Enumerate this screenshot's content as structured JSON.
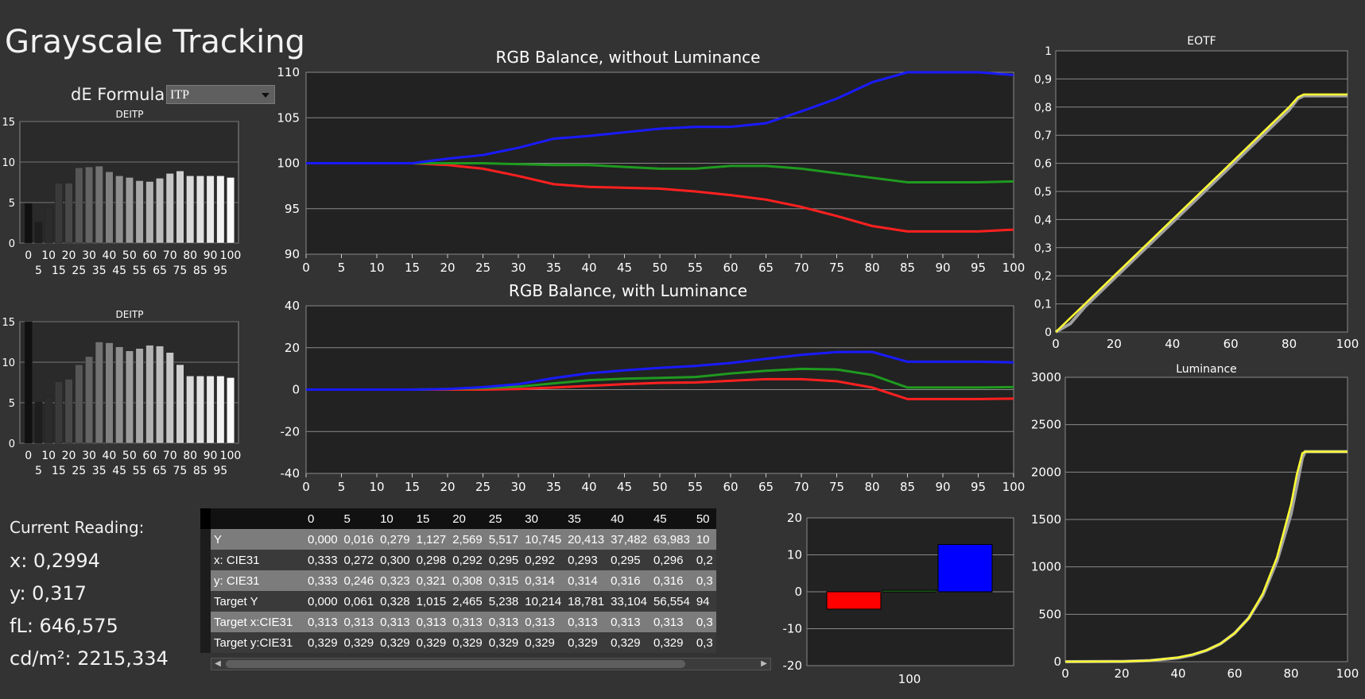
{
  "page": {
    "title": "Grayscale Tracking",
    "de_formula_label": "dE Formula:",
    "de_formula_value": "ITP"
  },
  "reading": {
    "heading": "Current Reading:",
    "x": "x: 0,2994",
    "y": "y: 0,317",
    "fl": "fL: 646,575",
    "cdm2": "cd/m²: 2215,334"
  },
  "table": {
    "columns": [
      "0",
      "5",
      "10",
      "15",
      "20",
      "25",
      "30",
      "35",
      "40",
      "45",
      "50"
    ],
    "rows": [
      {
        "label": "Y",
        "values": [
          "0,000",
          "0,016",
          "0,279",
          "1,127",
          "2,569",
          "5,517",
          "10,745",
          "20,413",
          "37,482",
          "63,983",
          "10"
        ]
      },
      {
        "label": "x: CIE31",
        "values": [
          "0,333",
          "0,272",
          "0,300",
          "0,298",
          "0,292",
          "0,295",
          "0,292",
          "0,293",
          "0,295",
          "0,296",
          "0,2"
        ]
      },
      {
        "label": "y: CIE31",
        "values": [
          "0,333",
          "0,246",
          "0,323",
          "0,321",
          "0,308",
          "0,315",
          "0,314",
          "0,314",
          "0,316",
          "0,316",
          "0,3"
        ]
      },
      {
        "label": "Target Y",
        "values": [
          "0,000",
          "0,061",
          "0,328",
          "1,015",
          "2,465",
          "5,238",
          "10,214",
          "18,781",
          "33,104",
          "56,554",
          "94"
        ]
      },
      {
        "label": "Target x:CIE31",
        "values": [
          "0,313",
          "0,313",
          "0,313",
          "0,313",
          "0,313",
          "0,313",
          "0,313",
          "0,313",
          "0,313",
          "0,313",
          "0,3"
        ]
      },
      {
        "label": "Target y:CIE31",
        "values": [
          "0,329",
          "0,329",
          "0,329",
          "0,329",
          "0,329",
          "0,329",
          "0,329",
          "0,329",
          "0,329",
          "0,329",
          "0,3"
        ]
      }
    ]
  },
  "chart_data": [
    {
      "id": "deitp1",
      "type": "bar",
      "title": "DEITP",
      "x": [
        0,
        5,
        10,
        15,
        20,
        25,
        30,
        35,
        40,
        45,
        50,
        55,
        60,
        65,
        70,
        75,
        80,
        85,
        90,
        95,
        100
      ],
      "values": [
        4.9,
        2.6,
        4.4,
        7.4,
        7.4,
        9.3,
        9.4,
        9.5,
        8.8,
        8.3,
        8.1,
        7.7,
        7.6,
        8.0,
        8.6,
        8.9,
        8.3,
        8.3,
        8.3,
        8.3,
        8.1
      ],
      "ylim": [
        0,
        15
      ],
      "yticks": [
        0,
        5,
        10,
        15
      ],
      "xticks_top": [
        "0",
        "10",
        "20",
        "30",
        "40",
        "50",
        "60",
        "70",
        "80",
        "90",
        "100"
      ],
      "xticks_bottom": [
        "5",
        "15",
        "25",
        "35",
        "45",
        "55",
        "65",
        "75",
        "85",
        "95"
      ],
      "bar_colors": [
        "#101010",
        "#1e1e1e",
        "#2c2c2c",
        "#3a3a3a",
        "#484848",
        "#565656",
        "#646464",
        "#727272",
        "#808080",
        "#8e8e8e",
        "#9c9c9c",
        "#a8a8a8",
        "#b2b2b2",
        "#bcbcbc",
        "#c6c6c6",
        "#d0d0d0",
        "#d9d9d9",
        "#e2e2e2",
        "#eaeaea",
        "#f2f2f2",
        "#fafafa"
      ]
    },
    {
      "id": "deitp2",
      "type": "bar",
      "title": "DEITP",
      "x": [
        0,
        5,
        10,
        15,
        20,
        25,
        30,
        35,
        40,
        45,
        50,
        55,
        60,
        65,
        70,
        75,
        80,
        85,
        90,
        95,
        100
      ],
      "values": [
        15,
        5.1,
        5.8,
        7.6,
        7.9,
        9.7,
        10.7,
        12.5,
        12.4,
        11.9,
        11.4,
        11.7,
        12.1,
        12.0,
        11.2,
        9.7,
        8.3,
        8.3,
        8.3,
        8.3,
        8.1
      ],
      "ylim": [
        0,
        15
      ],
      "yticks": [
        0,
        5,
        10,
        15
      ],
      "xticks_top": [
        "0",
        "10",
        "20",
        "30",
        "40",
        "50",
        "60",
        "70",
        "80",
        "90",
        "100"
      ],
      "xticks_bottom": [
        "5",
        "15",
        "25",
        "35",
        "45",
        "55",
        "65",
        "75",
        "85",
        "95"
      ],
      "bar_colors": [
        "#101010",
        "#1e1e1e",
        "#2c2c2c",
        "#3a3a3a",
        "#484848",
        "#565656",
        "#646464",
        "#727272",
        "#808080",
        "#8e8e8e",
        "#9c9c9c",
        "#a8a8a8",
        "#b2b2b2",
        "#bcbcbc",
        "#c6c6c6",
        "#d0d0d0",
        "#d9d9d9",
        "#e2e2e2",
        "#eaeaea",
        "#f2f2f2",
        "#fafafa"
      ]
    },
    {
      "id": "rgb1",
      "type": "line",
      "title": "RGB Balance, without Luminance",
      "x": [
        0,
        5,
        10,
        15,
        20,
        25,
        30,
        35,
        40,
        45,
        50,
        55,
        60,
        65,
        70,
        75,
        80,
        85,
        90,
        95,
        100
      ],
      "series": [
        {
          "color": "#ff2020",
          "values": [
            100,
            100,
            100,
            100,
            99.8,
            99.4,
            98.6,
            97.7,
            97.4,
            97.3,
            97.2,
            96.9,
            96.5,
            96.0,
            95.2,
            94.2,
            93.1,
            92.5,
            92.5,
            92.5,
            92.7
          ]
        },
        {
          "color": "#1f9a1f",
          "values": [
            100,
            100,
            100,
            100,
            100,
            100,
            99.9,
            99.8,
            99.8,
            99.6,
            99.4,
            99.4,
            99.7,
            99.7,
            99.4,
            98.9,
            98.4,
            97.9,
            97.9,
            97.9,
            98.0
          ]
        },
        {
          "color": "#1a1aff",
          "values": [
            100,
            100,
            100,
            100,
            100.5,
            100.9,
            101.7,
            102.7,
            103.0,
            103.4,
            103.8,
            104.0,
            104.0,
            104.4,
            105.7,
            107.1,
            108.9,
            110.0,
            110.0,
            110.0,
            109.7
          ]
        }
      ],
      "ylim": [
        90,
        110
      ],
      "yticks": [
        90,
        95,
        100,
        105,
        110
      ],
      "xlim": [
        0,
        100
      ],
      "xticks": [
        0,
        5,
        10,
        15,
        20,
        25,
        30,
        35,
        40,
        45,
        50,
        55,
        60,
        65,
        70,
        75,
        80,
        85,
        90,
        95,
        100
      ]
    },
    {
      "id": "rgb2",
      "type": "line",
      "title": "RGB Balance, with Luminance",
      "x": [
        0,
        5,
        10,
        15,
        20,
        25,
        30,
        35,
        40,
        45,
        50,
        55,
        60,
        65,
        70,
        75,
        80,
        85,
        90,
        95,
        100
      ],
      "series": [
        {
          "color": "#ff2020",
          "values": [
            0,
            0,
            0,
            0,
            0,
            0,
            0.3,
            1.0,
            1.8,
            2.6,
            3.2,
            3.4,
            4.2,
            5.0,
            5.0,
            4.0,
            1.0,
            -4.5,
            -4.5,
            -4.5,
            -4.3
          ]
        },
        {
          "color": "#1f9a1f",
          "values": [
            0,
            0,
            0,
            0,
            0.3,
            0.7,
            1.4,
            3.0,
            4.5,
            5.2,
            5.6,
            6.0,
            7.7,
            9.0,
            9.9,
            9.6,
            7.0,
            1.0,
            1.0,
            1.0,
            1.2
          ]
        },
        {
          "color": "#1a1aff",
          "values": [
            0,
            0,
            0,
            0,
            0.3,
            1.2,
            2.6,
            5.5,
            7.8,
            9.2,
            10.4,
            11.3,
            12.7,
            14.7,
            16.6,
            17.9,
            18.0,
            13.3,
            13.3,
            13.3,
            13.0
          ]
        }
      ],
      "ylim": [
        -40,
        40
      ],
      "yticks": [
        -40,
        -20,
        0,
        20,
        40
      ],
      "xlim": [
        0,
        100
      ],
      "xticks": [
        0,
        5,
        10,
        15,
        20,
        25,
        30,
        35,
        40,
        45,
        50,
        55,
        60,
        65,
        70,
        75,
        80,
        85,
        90,
        95,
        100
      ]
    },
    {
      "id": "rgbbars",
      "type": "bar",
      "category": "100",
      "series": [
        {
          "color": "#ff0000",
          "value": -4.7
        },
        {
          "color": "#2a8a2a",
          "value": 0.4
        },
        {
          "color": "#0000ff",
          "value": 12.8
        }
      ],
      "ylim": [
        -20,
        20
      ],
      "yticks": [
        -20,
        -10,
        0,
        10,
        20
      ]
    },
    {
      "id": "eotf",
      "type": "line",
      "title": "EOTF",
      "series": [
        {
          "color": "#a0a0a0",
          "x": [
            0,
            5,
            10,
            20,
            30,
            40,
            50,
            60,
            70,
            80,
            83,
            85,
            90,
            100
          ],
          "values": [
            0,
            0.03,
            0.09,
            0.19,
            0.29,
            0.39,
            0.49,
            0.59,
            0.69,
            0.79,
            0.83,
            0.84,
            0.84,
            0.84
          ]
        },
        {
          "color": "#ffff33",
          "x": [
            0,
            5,
            10,
            20,
            30,
            40,
            50,
            60,
            70,
            80,
            83,
            85,
            90,
            100
          ],
          "values": [
            0,
            0.05,
            0.1,
            0.2,
            0.3,
            0.4,
            0.5,
            0.6,
            0.7,
            0.8,
            0.835,
            0.845,
            0.845,
            0.845
          ]
        }
      ],
      "ylim": [
        0,
        1
      ],
      "yticks": [
        "0",
        "0,1",
        "0,2",
        "0,3",
        "0,4",
        "0,5",
        "0,6",
        "0,7",
        "0,8",
        "0,9",
        "1"
      ],
      "xlim": [
        0,
        100
      ],
      "xticks": [
        0,
        20,
        40,
        60,
        80,
        100
      ]
    },
    {
      "id": "luminance",
      "type": "line",
      "title": "Luminance",
      "series": [
        {
          "color": "#a0a0a0",
          "x": [
            0,
            20,
            30,
            40,
            45,
            50,
            55,
            60,
            65,
            70,
            75,
            80,
            82,
            84,
            85,
            90,
            100
          ],
          "values": [
            0,
            2,
            12,
            40,
            70,
            118,
            188,
            300,
            460,
            700,
            1060,
            1560,
            1850,
            2150,
            2215,
            2215,
            2215
          ]
        },
        {
          "color": "#ffff33",
          "x": [
            0,
            20,
            30,
            40,
            45,
            50,
            55,
            60,
            65,
            70,
            75,
            80,
            82,
            84,
            85,
            90,
            100
          ],
          "values": [
            0,
            2,
            12,
            45,
            75,
            120,
            190,
            300,
            460,
            720,
            1100,
            1660,
            1970,
            2200,
            2215,
            2215,
            2215
          ]
        }
      ],
      "ylim": [
        0,
        3000
      ],
      "yticks": [
        0,
        500,
        1000,
        1500,
        2000,
        2500,
        3000
      ],
      "xlim": [
        0,
        100
      ],
      "xticks": [
        0,
        20,
        40,
        60,
        80,
        100
      ]
    }
  ]
}
